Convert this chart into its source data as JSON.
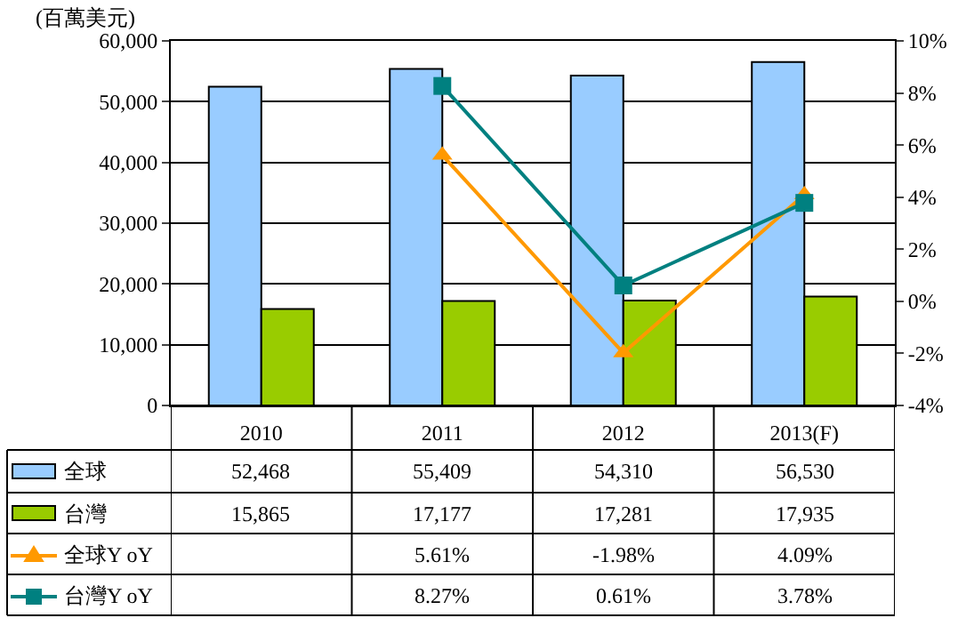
{
  "chart_data": {
    "type": "bar",
    "ylabel": "(百萬美元)",
    "categories": [
      "2010",
      "2011",
      "2012",
      "2013(F)"
    ],
    "series": [
      {
        "name": "全球",
        "color": "#99ccff",
        "values": [
          52468,
          55409,
          54310,
          56530
        ],
        "value_labels": [
          "52,468",
          "55,409",
          "54,310",
          "56,530"
        ]
      },
      {
        "name": "台灣",
        "color": "#99cc00",
        "values": [
          15865,
          17177,
          17281,
          17935
        ],
        "value_labels": [
          "15,865",
          "17,177",
          "17,281",
          "17,935"
        ]
      },
      {
        "name": "全球Y oY",
        "type": "line",
        "axis": "y2",
        "marker": "triangle",
        "color": "#ff9900",
        "values": [
          null,
          5.61,
          -1.98,
          4.09
        ],
        "value_labels": [
          null,
          "5.61%",
          "-1.98%",
          "4.09%"
        ]
      },
      {
        "name": "台灣Y oY",
        "type": "line",
        "axis": "y2",
        "marker": "square",
        "color": "#008080",
        "values": [
          null,
          8.27,
          0.61,
          3.78
        ],
        "value_labels": [
          null,
          "8.27%",
          "0.61%",
          "3.78%"
        ]
      }
    ],
    "ylim": [
      0,
      60000
    ],
    "yticks": [
      {
        "value": 0,
        "label": "0"
      },
      {
        "value": 10000,
        "label": "10,000"
      },
      {
        "value": 20000,
        "label": "20,000"
      },
      {
        "value": 30000,
        "label": "30,000"
      },
      {
        "value": 40000,
        "label": "40,000"
      },
      {
        "value": 50000,
        "label": "50,000"
      },
      {
        "value": 60000,
        "label": "60,000"
      }
    ],
    "y2lim": [
      -4,
      10
    ],
    "y2ticks": [
      {
        "value": -4,
        "label": "-4%"
      },
      {
        "value": -2,
        "label": "-2%"
      },
      {
        "value": 0,
        "label": "0%"
      },
      {
        "value": 2,
        "label": "2%"
      },
      {
        "value": 4,
        "label": "4%"
      },
      {
        "value": 6,
        "label": "6%"
      },
      {
        "value": 8,
        "label": "8%"
      },
      {
        "value": 10,
        "label": "10%"
      }
    ],
    "grid": "y",
    "legend": "bottom"
  }
}
